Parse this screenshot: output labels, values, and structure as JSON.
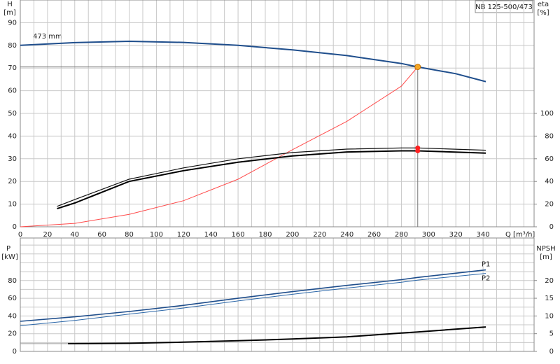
{
  "chart_data": [
    {
      "type": "line",
      "title": "NB 125-500/473",
      "y_label": "H",
      "y_unit": "[m]",
      "y2_label": "eta",
      "y2_unit": "[%]",
      "x_label": "Q [m³/h]",
      "annotation": "473 mm",
      "xlim": [
        0,
        377.5
      ],
      "xticks": [
        0,
        20,
        40,
        60,
        80,
        100,
        120,
        140,
        160,
        180,
        200,
        220,
        240,
        260,
        280,
        300,
        320,
        340
      ],
      "x_minor_grid": [
        10,
        30,
        50,
        70,
        90,
        110,
        130,
        150,
        170,
        190,
        210,
        230,
        250,
        270,
        290,
        310,
        330,
        350,
        360,
        370
      ],
      "ylim": [
        0,
        100
      ],
      "yticks": [
        0,
        10,
        20,
        30,
        40,
        50,
        60,
        70,
        80,
        90
      ],
      "y2lim": [
        0,
        200
      ],
      "y2ticks": [
        0,
        20,
        40,
        60,
        80,
        100
      ],
      "grid": true,
      "operating_point": {
        "x": 292,
        "y": 70.5,
        "color": "#f5a623"
      },
      "series": [
        {
          "color": "#1f4e8c",
          "width": 2,
          "x": [
            0,
            40,
            80,
            120,
            160,
            200,
            240,
            280,
            292,
            320,
            342
          ],
          "values": [
            80,
            81.2,
            81.8,
            81.3,
            80,
            78,
            75.5,
            72,
            70.5,
            67.5,
            64
          ]
        },
        {
          "color": "#ff4a4a",
          "width": 1,
          "x": [
            0,
            40,
            80,
            120,
            160,
            200,
            240,
            280,
            292
          ],
          "values": [
            0,
            1.5,
            5.5,
            11.5,
            21,
            34,
            46.5,
            62,
            70.5
          ]
        },
        {
          "color": "#111111",
          "width": 1.2,
          "axis": "y2",
          "marker_color": "#ff2020",
          "x": [
            27,
            40,
            80,
            120,
            160,
            200,
            240,
            280,
            292,
            342
          ],
          "values": [
            18,
            24,
            42,
            52,
            60,
            65.5,
            68.5,
            69.5,
            69.5,
            67.5
          ]
        },
        {
          "color": "#000000",
          "width": 2,
          "axis": "y2",
          "marker_color": "#ff2020",
          "x": [
            27,
            40,
            80,
            120,
            160,
            200,
            240,
            280,
            292,
            342
          ],
          "values": [
            16,
            21,
            40,
            49.5,
            57,
            62.5,
            66,
            67,
            67,
            65
          ]
        }
      ]
    },
    {
      "type": "line",
      "y_label": "P",
      "y_unit": "[kW]",
      "y2_label": "NPSH",
      "y2_unit": "[m]",
      "xlim": [
        0,
        377.5
      ],
      "xticks": [
        0,
        20,
        40,
        60,
        80,
        100,
        120,
        140,
        160,
        180,
        200,
        220,
        240,
        260,
        280,
        300,
        320,
        340
      ],
      "x_tick_labels": false,
      "x_minor_grid": [
        10,
        30,
        50,
        70,
        90,
        110,
        130,
        150,
        170,
        190,
        210,
        230,
        250,
        270,
        290,
        310,
        330,
        350,
        360,
        370
      ],
      "ylim": [
        0,
        128
      ],
      "yticks": [
        0,
        20,
        40,
        60,
        80
      ],
      "y_minor_grid": [
        10,
        30,
        50,
        70,
        90,
        100,
        110,
        120
      ],
      "y2lim": [
        0,
        32
      ],
      "y2ticks": [
        0,
        5,
        10,
        15,
        20
      ],
      "grid": true,
      "series": [
        {
          "name": "P1",
          "label_position": "above",
          "color": "#1f4e8c",
          "width": 1.6,
          "marker_color": "#ff2020",
          "x": [
            0,
            40,
            80,
            120,
            160,
            200,
            240,
            280,
            292,
            342
          ],
          "values": [
            34,
            39,
            45,
            52,
            60,
            67.5,
            74.5,
            81,
            83.5,
            92
          ]
        },
        {
          "name": "P2",
          "label_position": "below",
          "color": "#2a66a8",
          "width": 1,
          "marker_color": "#ff2020",
          "x": [
            0,
            40,
            80,
            120,
            160,
            200,
            240,
            280,
            292,
            342
          ],
          "values": [
            29,
            35,
            42,
            49,
            57,
            64.5,
            71.5,
            78,
            80.5,
            88
          ]
        },
        {
          "color": "#999999",
          "width": 1,
          "axis": "y2",
          "x": [
            0,
            35
          ],
          "values": [
            2.2,
            2.2
          ]
        },
        {
          "color": "#000000",
          "width": 2,
          "axis": "y2",
          "marker_color": "#ff2020",
          "x": [
            35,
            80,
            120,
            160,
            200,
            240,
            280,
            292,
            342
          ],
          "values": [
            2.2,
            2.3,
            2.6,
            3.0,
            3.5,
            4.1,
            5.2,
            5.5,
            6.9
          ]
        }
      ]
    }
  ]
}
